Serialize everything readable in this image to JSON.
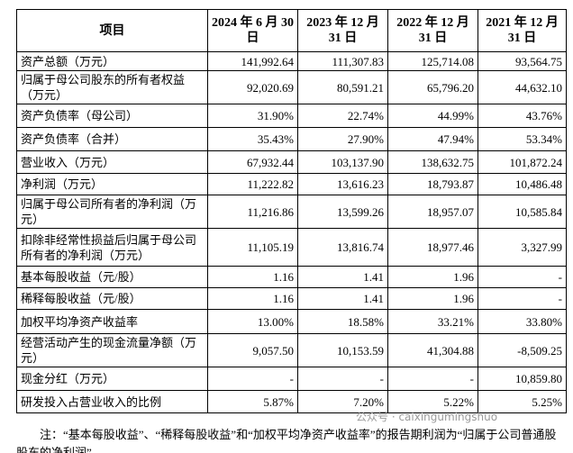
{
  "table": {
    "header": [
      "项目",
      "2024 年 6 月 30 日",
      "2023 年 12 月 31 日",
      "2022 年 12 月 31 日",
      "2021 年 12 月 31 日"
    ],
    "rows": [
      [
        "资产总额（万元）",
        "141,992.64",
        "111,307.83",
        "125,714.08",
        "93,564.75"
      ],
      [
        "归属于母公司股东的所有者权益（万元）",
        "92,020.69",
        "80,591.21",
        "65,796.20",
        "44,632.10"
      ],
      [
        "资产负债率（母公司）",
        "31.90%",
        "22.74%",
        "44.99%",
        "43.76%"
      ],
      [
        "资产负债率（合并）",
        "35.43%",
        "27.90%",
        "47.94%",
        "53.34%"
      ],
      [
        "营业收入（万元）",
        "67,932.44",
        "103,137.90",
        "138,632.75",
        "101,872.24"
      ],
      [
        "净利润（万元）",
        "11,222.82",
        "13,616.23",
        "18,793.87",
        "10,486.48"
      ],
      [
        "归属于母公司所有者的净利润（万元）",
        "11,216.86",
        "13,599.26",
        "18,957.07",
        "10,585.84"
      ],
      [
        "扣除非经常性损益后归属于母公司所有者的净利润（万元）",
        "11,105.19",
        "13,816.74",
        "18,977.46",
        "3,327.99"
      ],
      [
        "基本每股收益（元/股）",
        "1.16",
        "1.41",
        "1.96",
        "-"
      ],
      [
        "稀释每股收益（元/股）",
        "1.16",
        "1.41",
        "1.96",
        "-"
      ],
      [
        "加权平均净资产收益率",
        "13.00%",
        "18.58%",
        "33.21%",
        "33.80%"
      ],
      [
        "经营活动产生的现金流量净额（万元）",
        "9,057.50",
        "10,153.59",
        "41,304.88",
        "-8,509.25"
      ],
      [
        "现金分红（万元）",
        "-",
        "-",
        "-",
        "10,859.80"
      ],
      [
        "研发投入占营业收入的比例",
        "5.87%",
        "7.20%",
        "5.22%",
        "5.25%"
      ]
    ]
  },
  "note": "注：“基本每股收益”、“稀释每股收益”和“加权平均净资产收益率”的报告期利润为“归属于公司普通股股东的净利润”",
  "watermark": "公众号 · caixingumingshuo"
}
